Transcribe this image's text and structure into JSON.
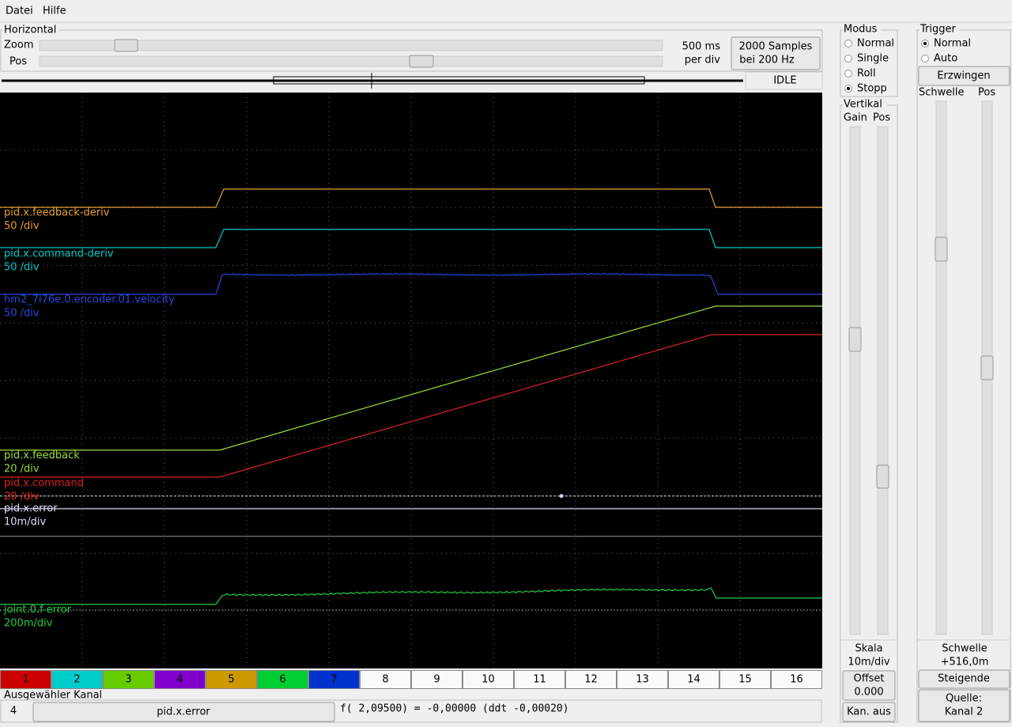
{
  "menu": [
    "Datei",
    "Hilfe"
  ],
  "horizontal": {
    "title": "Horizontal",
    "zoom_label": "Zoom",
    "pos_label": "Pos",
    "rate_line1": "500 ms",
    "rate_line2": "per div",
    "samples_line1": "2000 Samples",
    "samples_line2": "bei 200 Hz",
    "status": "IDLE"
  },
  "modus": {
    "title": "Modus",
    "options": [
      "Normal",
      "Single",
      "Roll",
      "Stopp"
    ]
  },
  "vertical": {
    "title": "Vertikal",
    "gain_label": "Gain",
    "pos_label": "Pos",
    "scale_label": "Skala",
    "scale_value": "10m/div",
    "offset_label": "Offset",
    "offset_value": "0.000",
    "off_button": "Kan. aus"
  },
  "trigger": {
    "title": "Trigger",
    "options": [
      "Normal",
      "Auto"
    ],
    "force_button": "Erzwingen",
    "level_label": "Schwelle",
    "pos_label": "Pos",
    "threshold_label": "Schwelle",
    "threshold_value": "+516,0m",
    "edge_button": "Steigende",
    "source_line1": "Quelle:",
    "source_line2": "Kanal  2"
  },
  "traces": [
    {
      "name": "pid.x.feedback-deriv",
      "scale": "50 /div",
      "color": "#e8a030"
    },
    {
      "name": "pid.x.command-deriv",
      "scale": "50 /div",
      "color": "#00cccc"
    },
    {
      "name": "hm2_7i76e.0.encoder.01.velocity",
      "scale": "50 /div",
      "color": "#2448e0"
    },
    {
      "name": "pid.x.feedback",
      "scale": "20 /div",
      "color": "#99dd33"
    },
    {
      "name": "pid.x.command",
      "scale": "20 /div",
      "color": "#dd2222"
    },
    {
      "name": "pid.x.error",
      "scale": "10m/div",
      "color": "#e6d8f6"
    },
    {
      "name": "joint.0.f-error",
      "scale": "200m/div",
      "color": "#22cc44"
    }
  ],
  "channels": [
    "1",
    "2",
    "3",
    "4",
    "5",
    "6",
    "7",
    "8",
    "9",
    "10",
    "11",
    "12",
    "13",
    "14",
    "15",
    "16"
  ],
  "selected": {
    "title": "Ausgewähler Kanal",
    "number": "4",
    "name": "pid.x.error",
    "readout": "f( 2,09500) = -0,00000 (ddt -0,00020)"
  }
}
